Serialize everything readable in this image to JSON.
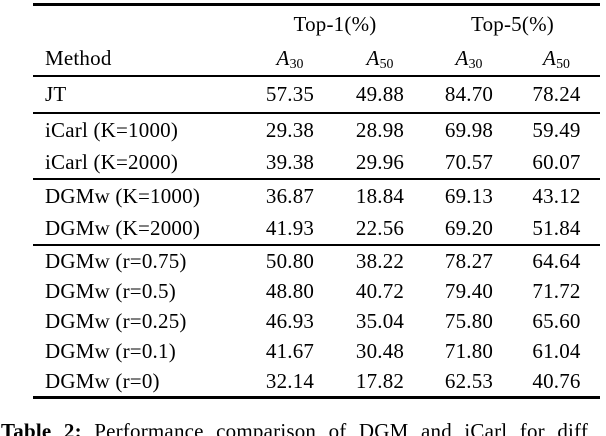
{
  "table": {
    "group_headers": [
      {
        "label": "Top-1(%)"
      },
      {
        "label": "Top-5(%)"
      }
    ],
    "method_header": "Method",
    "sub_headers": [
      {
        "base": "A",
        "sub": "30"
      },
      {
        "base": "A",
        "sub": "50"
      },
      {
        "base": "A",
        "sub": "30"
      },
      {
        "base": "A",
        "sub": "50"
      }
    ],
    "sections": [
      {
        "rows": [
          {
            "method": "JT",
            "values": [
              "57.35",
              "49.88",
              "84.70",
              "78.24"
            ]
          }
        ]
      },
      {
        "rows": [
          {
            "method": "iCarl (K=1000)",
            "values": [
              "29.38",
              "28.98",
              "69.98",
              "59.49"
            ]
          },
          {
            "method": "iCarl (K=2000)",
            "values": [
              "39.38",
              "29.96",
              "70.57",
              "60.07"
            ]
          }
        ]
      },
      {
        "rows": [
          {
            "method": "DGMw (K=1000)",
            "values": [
              "36.87",
              "18.84",
              "69.13",
              "43.12"
            ]
          },
          {
            "method": "DGMw (K=2000)",
            "values": [
              "41.93",
              "22.56",
              "69.20",
              "51.84"
            ]
          }
        ]
      },
      {
        "rows": [
          {
            "method": "DGMw (r=0.75)",
            "values": [
              "50.80",
              "38.22",
              "78.27",
              "64.64"
            ]
          },
          {
            "method": "DGMw (r=0.5)",
            "values": [
              "48.80",
              "40.72",
              "79.40",
              "71.72"
            ]
          },
          {
            "method": "DGMw (r=0.25)",
            "values": [
              "46.93",
              "35.04",
              "75.80",
              "65.60"
            ]
          },
          {
            "method": "DGMw (r=0.1)",
            "values": [
              "41.67",
              "30.48",
              "71.80",
              "61.04"
            ]
          },
          {
            "method": "DGMw (r=0)",
            "values": [
              "32.14",
              "17.82",
              "62.53",
              "40.76"
            ]
          }
        ]
      }
    ]
  },
  "caption": {
    "label": "Table 2:",
    "text": "Performance comparison of DGM and iCarl for diff"
  },
  "colors": {
    "background": "#ffffff",
    "text": "#000000",
    "rule": "#000000"
  }
}
